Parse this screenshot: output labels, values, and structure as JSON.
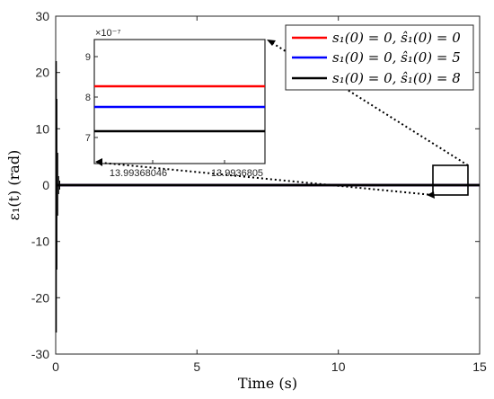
{
  "chart_data": [
    {
      "type": "line",
      "panel": "main",
      "xlabel": "Time (s)",
      "ylabel": "ε₁(t) (rad)",
      "xlim": [
        0,
        15
      ],
      "ylim": [
        -30,
        30
      ],
      "x_ticks": [
        "0",
        "5",
        "10",
        "15"
      ],
      "y_ticks": [
        "30",
        "20",
        "10",
        "0",
        "-10",
        "-20",
        "-30"
      ],
      "grid": false,
      "legend_position": "top-right",
      "series": [
        {
          "name": "s₁(0) = 0, ŝ₁(0) = 0",
          "color": "#ff0000",
          "transient_range": [
            -26.5,
            22
          ],
          "steady_value": 0
        },
        {
          "name": "s₁(0) = 0, ŝ₁(0) = 5",
          "color": "#0000ff",
          "transient_range": [
            -26.5,
            22
          ],
          "steady_value": 0
        },
        {
          "name": "s₁(0) = 0, ŝ₁(0) = 8",
          "color": "#000000",
          "transient_range": [
            -26.5,
            22
          ],
          "steady_value": 0
        }
      ]
    },
    {
      "type": "line",
      "panel": "inset",
      "x_ticks": [
        "13.99368046",
        "13.9936805"
      ],
      "y_ticks": [
        "9",
        "8",
        "7"
      ],
      "exponent_label": "×10⁻⁷",
      "ylim": [
        6.8,
        9.6
      ],
      "series": [
        {
          "name": "s₁(0) = 0, ŝ₁(0) = 0",
          "color": "#ff0000",
          "value": 8.3
        },
        {
          "name": "s₁(0) = 0, ŝ₁(0) = 5",
          "color": "#0000ff",
          "value": 7.8
        },
        {
          "name": "s₁(0) = 0, ŝ₁(0) = 8",
          "color": "#000000",
          "value": 7.1
        }
      ]
    }
  ]
}
